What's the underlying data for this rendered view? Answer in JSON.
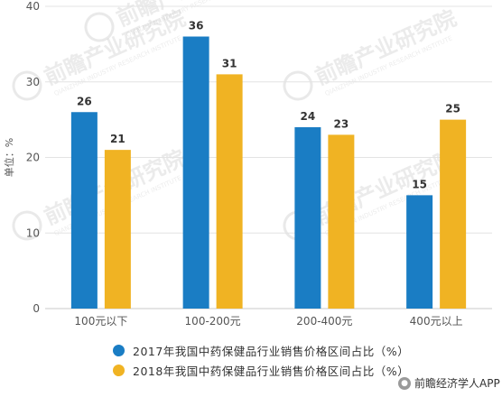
{
  "chart_data": {
    "type": "bar",
    "ylabel": "单位：%",
    "ylim": [
      0,
      40
    ],
    "yticks": [
      "0",
      "10",
      "20",
      "30",
      "40"
    ],
    "categories": [
      "100元以下",
      "100-200元",
      "200-400元",
      "400元以上"
    ],
    "series": [
      {
        "name": "2017年我国中药保健品行业销售价格区间占比（%）",
        "color": "#1a7dc4",
        "values": [
          26,
          36,
          24,
          15
        ]
      },
      {
        "name": "2018年我国中药保健品行业销售价格区间占比（%）",
        "color": "#f0b323",
        "values": [
          21,
          31,
          23,
          25
        ]
      }
    ],
    "grid": true,
    "legend_position": "bottom"
  },
  "watermark": {
    "text": "前瞻产业研究院",
    "sub": "QIANZHAN INDUSTRY RESEARCH INSTITUTE"
  },
  "footer": {
    "text": "前瞻经济学人APP"
  }
}
